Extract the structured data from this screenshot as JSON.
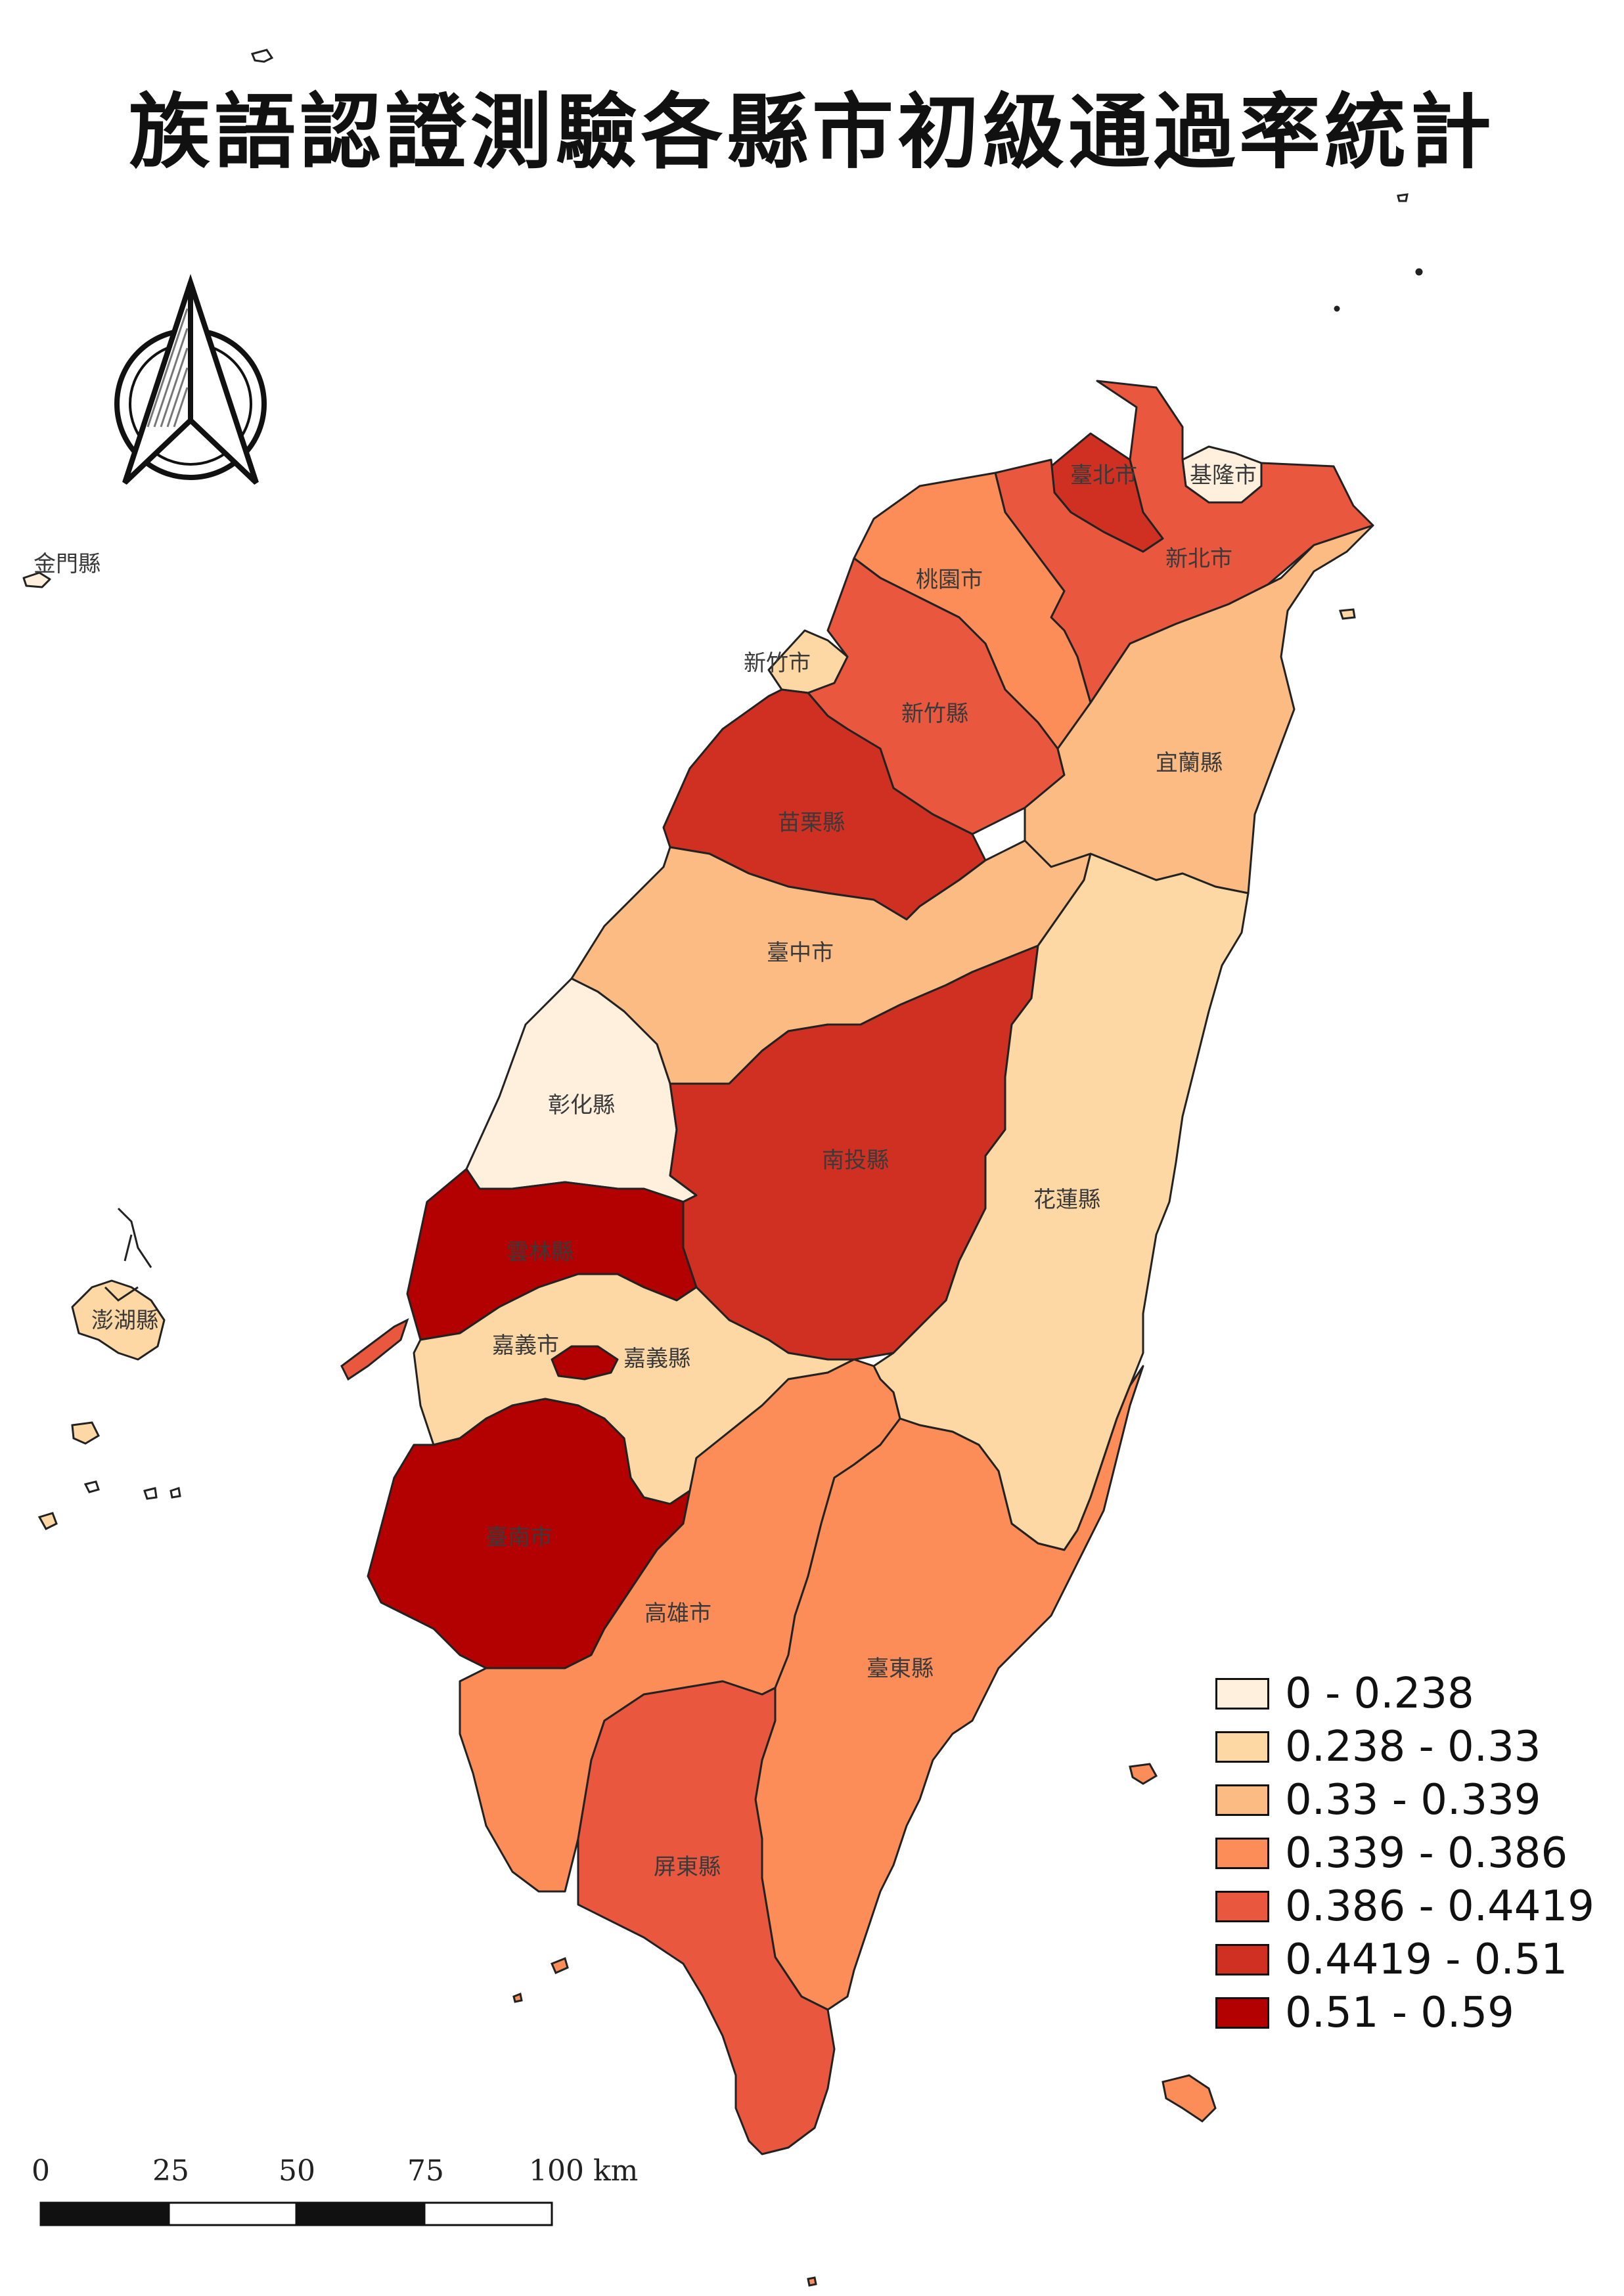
{
  "title": "族語認證測驗各縣市初級通過率統計",
  "legend": [
    {
      "label": "0 - 0.238",
      "color": "#fef0dd"
    },
    {
      "label": "0.238 - 0.33",
      "color": "#fdd7a4"
    },
    {
      "label": "0.33 - 0.339",
      "color": "#fdbb84"
    },
    {
      "label": "0.339 - 0.386",
      "color": "#fc8d59"
    },
    {
      "label": "0.386 - 0.4419",
      "color": "#e9573e"
    },
    {
      "label": "0.4419 - 0.51",
      "color": "#d03022"
    },
    {
      "label": "0.51 - 0.59",
      "color": "#b30000"
    }
  ],
  "counties": [
    {
      "name": "臺北市",
      "class": 5
    },
    {
      "name": "基隆市",
      "class": 0
    },
    {
      "name": "新北市",
      "class": 4
    },
    {
      "name": "桃園市",
      "class": 3
    },
    {
      "name": "新竹市",
      "class": 1
    },
    {
      "name": "新竹縣",
      "class": 4
    },
    {
      "name": "宜蘭縣",
      "class": 2
    },
    {
      "name": "苗栗縣",
      "class": 5
    },
    {
      "name": "臺中市",
      "class": 2
    },
    {
      "name": "彰化縣",
      "class": 0
    },
    {
      "name": "南投縣",
      "class": 5
    },
    {
      "name": "花蓮縣",
      "class": 1
    },
    {
      "name": "雲林縣",
      "class": 6
    },
    {
      "name": "嘉義市",
      "class": 1
    },
    {
      "name": "嘉義縣",
      "class": 6
    },
    {
      "name": "臺南市",
      "class": 6
    },
    {
      "name": "高雄市",
      "class": 3
    },
    {
      "name": "臺東縣",
      "class": 3
    },
    {
      "name": "屏東縣",
      "class": 4
    },
    {
      "name": "金門縣",
      "class": 0
    },
    {
      "name": "澎湖縣",
      "class": 1
    }
  ],
  "scalebar": {
    "labels": [
      "0",
      "25",
      "50",
      "75",
      "100 km"
    ]
  },
  "north_arrow_icon": "north-arrow-icon"
}
